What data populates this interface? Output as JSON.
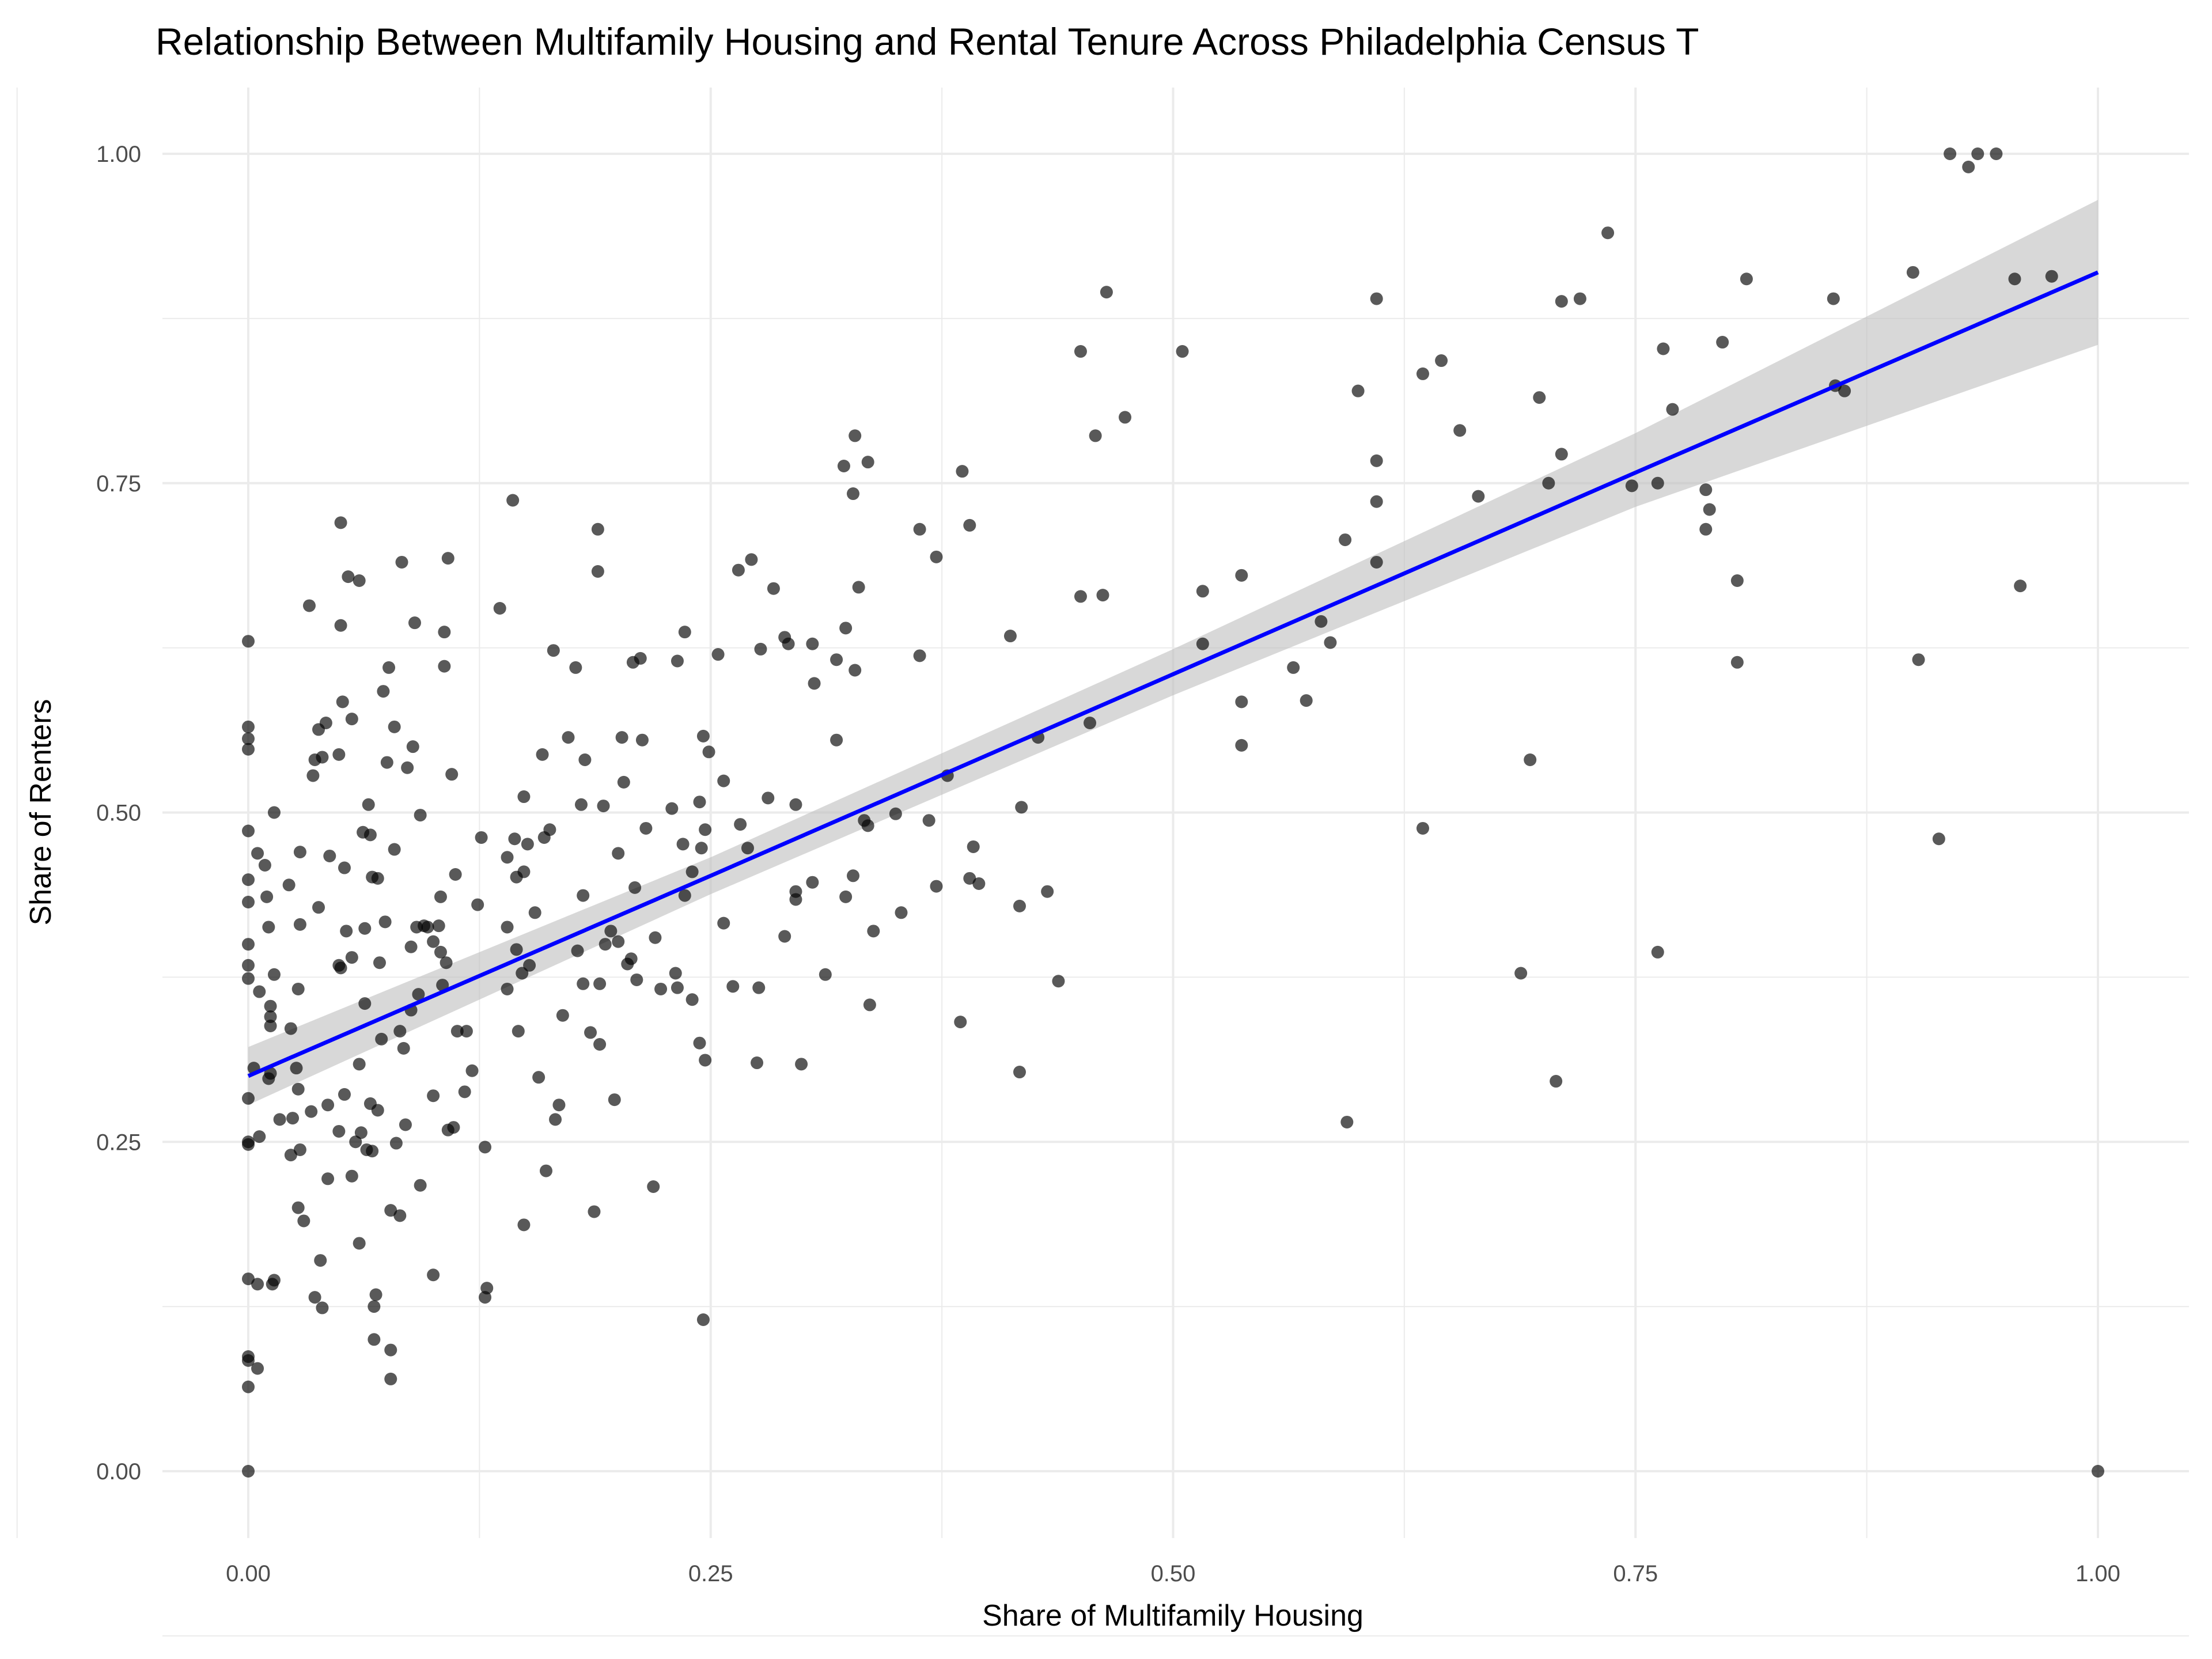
{
  "chart_data": {
    "type": "scatter",
    "title": "Relationship Between Multifamily Housing and Rental Tenure Across Philadelphia Census T",
    "xlabel": "Share of Multifamily Housing",
    "ylabel": "Share of Renters",
    "xlim": [
      -0.09,
      1.05
    ],
    "ylim": [
      -0.05,
      1.05
    ],
    "x_ticks": [
      0,
      0.25,
      0.5,
      0.75,
      1
    ],
    "x_tick_labels": [
      "0.00",
      "0.25",
      "0.50",
      "0.75",
      "1.00"
    ],
    "y_ticks": [
      0,
      0.25,
      0.5,
      0.75,
      1
    ],
    "y_tick_labels": [
      "0.00",
      "0.25",
      "0.50",
      "0.75",
      "1.00"
    ],
    "grid": true,
    "legend": "none",
    "colors": {
      "points": "#000000",
      "fit_line": "#0000FF",
      "ci_band": "#BEBEBE",
      "grid": "#EBEBEB"
    },
    "fit": {
      "method": "linear",
      "x": [
        0,
        0.25,
        0.5,
        0.75,
        1
      ],
      "y": [
        0.3,
        0.452,
        0.605,
        0.758,
        0.91
      ],
      "ci_lower": [
        0.278,
        0.438,
        0.589,
        0.732,
        0.855
      ],
      "ci_upper": [
        0.322,
        0.466,
        0.624,
        0.788,
        0.965
      ]
    },
    "points": [
      [
        0.92,
        1.0
      ],
      [
        0.93,
        0.99
      ],
      [
        0.935,
        1.0
      ],
      [
        0.945,
        1.0
      ],
      [
        0.735,
        0.94
      ],
      [
        0.9,
        0.91
      ],
      [
        0.81,
        0.905
      ],
      [
        0.955,
        0.905
      ],
      [
        0.975,
        0.907
      ],
      [
        0.61,
        0.89
      ],
      [
        0.71,
        0.888
      ],
      [
        0.72,
        0.89
      ],
      [
        0.857,
        0.89
      ],
      [
        0.464,
        0.895
      ],
      [
        0.45,
        0.85
      ],
      [
        0.505,
        0.85
      ],
      [
        0.765,
        0.852
      ],
      [
        0.797,
        0.857
      ],
      [
        0.645,
        0.843
      ],
      [
        0.635,
        0.833
      ],
      [
        0.6,
        0.82
      ],
      [
        0.858,
        0.824
      ],
      [
        0.863,
        0.82
      ],
      [
        0.698,
        0.815
      ],
      [
        0.77,
        0.806
      ],
      [
        0.474,
        0.8
      ],
      [
        0.458,
        0.786
      ],
      [
        0.655,
        0.79
      ],
      [
        0.71,
        0.772
      ],
      [
        0.61,
        0.767
      ],
      [
        0.665,
        0.74
      ],
      [
        0.703,
        0.75
      ],
      [
        0.748,
        0.748
      ],
      [
        0.762,
        0.75
      ],
      [
        0.788,
        0.745
      ],
      [
        0.61,
        0.736
      ],
      [
        0.79,
        0.73
      ],
      [
        0.788,
        0.715
      ],
      [
        0.593,
        0.707
      ],
      [
        0.61,
        0.69
      ],
      [
        0.537,
        0.68
      ],
      [
        0.805,
        0.676
      ],
      [
        0.958,
        0.672
      ],
      [
        0.516,
        0.668
      ],
      [
        0.45,
        0.664
      ],
      [
        0.462,
        0.665
      ],
      [
        0.58,
        0.645
      ],
      [
        0.412,
        0.634
      ],
      [
        0.585,
        0.629
      ],
      [
        0.516,
        0.628
      ],
      [
        0.565,
        0.61
      ],
      [
        0.805,
        0.614
      ],
      [
        0.903,
        0.616
      ],
      [
        0.537,
        0.584
      ],
      [
        0.572,
        0.585
      ],
      [
        0.537,
        0.551
      ],
      [
        0.455,
        0.568
      ],
      [
        0.693,
        0.54
      ],
      [
        0.427,
        0.557
      ],
      [
        0.418,
        0.504
      ],
      [
        0.635,
        0.488
      ],
      [
        0.914,
        0.48
      ],
      [
        0.432,
        0.44
      ],
      [
        0.417,
        0.429
      ],
      [
        0.762,
        0.394
      ],
      [
        0.688,
        0.378
      ],
      [
        0.438,
        0.372
      ],
      [
        0.417,
        0.303
      ],
      [
        0.707,
        0.296
      ],
      [
        0.594,
        0.265
      ],
      [
        1.0,
        0.0
      ],
      [
        0.328,
        0.786
      ],
      [
        0.322,
        0.763
      ],
      [
        0.335,
        0.766
      ],
      [
        0.327,
        0.742
      ],
      [
        0.386,
        0.759
      ],
      [
        0.363,
        0.715
      ],
      [
        0.39,
        0.718
      ],
      [
        0.372,
        0.694
      ],
      [
        0.265,
        0.684
      ],
      [
        0.272,
        0.692
      ],
      [
        0.284,
        0.67
      ],
      [
        0.33,
        0.671
      ],
      [
        0.236,
        0.637
      ],
      [
        0.29,
        0.633
      ],
      [
        0.292,
        0.628
      ],
      [
        0.277,
        0.624
      ],
      [
        0.305,
        0.628
      ],
      [
        0.323,
        0.64
      ],
      [
        0.363,
        0.619
      ],
      [
        0.254,
        0.62
      ],
      [
        0.318,
        0.616
      ],
      [
        0.232,
        0.615
      ],
      [
        0.328,
        0.608
      ],
      [
        0.306,
        0.598
      ],
      [
        0.318,
        0.555
      ],
      [
        0.246,
        0.558
      ],
      [
        0.249,
        0.546
      ],
      [
        0.257,
        0.524
      ],
      [
        0.281,
        0.511
      ],
      [
        0.296,
        0.506
      ],
      [
        0.229,
        0.503
      ],
      [
        0.244,
        0.508
      ],
      [
        0.215,
        0.488
      ],
      [
        0.247,
        0.487
      ],
      [
        0.266,
        0.491
      ],
      [
        0.235,
        0.476
      ],
      [
        0.245,
        0.473
      ],
      [
        0.27,
        0.473
      ],
      [
        0.333,
        0.494
      ],
      [
        0.335,
        0.49
      ],
      [
        0.35,
        0.499
      ],
      [
        0.368,
        0.494
      ],
      [
        0.392,
        0.474
      ],
      [
        0.378,
        0.528
      ],
      [
        0.305,
        0.447
      ],
      [
        0.327,
        0.452
      ],
      [
        0.296,
        0.44
      ],
      [
        0.296,
        0.434
      ],
      [
        0.323,
        0.436
      ],
      [
        0.372,
        0.444
      ],
      [
        0.39,
        0.45
      ],
      [
        0.395,
        0.446
      ],
      [
        0.236,
        0.437
      ],
      [
        0.24,
        0.455
      ],
      [
        0.257,
        0.416
      ],
      [
        0.338,
        0.41
      ],
      [
        0.353,
        0.424
      ],
      [
        0.22,
        0.405
      ],
      [
        0.231,
        0.378
      ],
      [
        0.232,
        0.367
      ],
      [
        0.223,
        0.366
      ],
      [
        0.262,
        0.368
      ],
      [
        0.276,
        0.367
      ],
      [
        0.312,
        0.377
      ],
      [
        0.29,
        0.406
      ],
      [
        0.24,
        0.358
      ],
      [
        0.336,
        0.354
      ],
      [
        0.385,
        0.341
      ],
      [
        0.244,
        0.325
      ],
      [
        0.247,
        0.312
      ],
      [
        0.275,
        0.31
      ],
      [
        0.299,
        0.309
      ],
      [
        0.219,
        0.216
      ],
      [
        0.246,
        0.115
      ],
      [
        0,
        0.63
      ],
      [
        0,
        0.565
      ],
      [
        0,
        0.556
      ],
      [
        0,
        0.548
      ],
      [
        0,
        0.486
      ],
      [
        0,
        0.449
      ],
      [
        0,
        0.432
      ],
      [
        0,
        0.4
      ],
      [
        0,
        0.384
      ],
      [
        0,
        0.374
      ],
      [
        0,
        0.283
      ],
      [
        0,
        0.25
      ],
      [
        0,
        0.248
      ],
      [
        0,
        0.146
      ],
      [
        0,
        0.087
      ],
      [
        0,
        0.084
      ],
      [
        0,
        0.064
      ],
      [
        0,
        0.0
      ],
      [
        0.003,
        0.306
      ],
      [
        0.005,
        0.469
      ],
      [
        0.006,
        0.254
      ],
      [
        0.006,
        0.364
      ],
      [
        0.005,
        0.142
      ],
      [
        0.005,
        0.078
      ],
      [
        0.009,
        0.46
      ],
      [
        0.01,
        0.436
      ],
      [
        0.011,
        0.413
      ],
      [
        0.012,
        0.353
      ],
      [
        0.012,
        0.345
      ],
      [
        0.012,
        0.338
      ],
      [
        0.012,
        0.302
      ],
      [
        0.011,
        0.298
      ],
      [
        0.013,
        0.142
      ],
      [
        0.014,
        0.145
      ],
      [
        0.014,
        0.377
      ],
      [
        0.014,
        0.5
      ],
      [
        0.017,
        0.267
      ],
      [
        0.022,
        0.445
      ],
      [
        0.023,
        0.336
      ],
      [
        0.023,
        0.24
      ],
      [
        0.024,
        0.268
      ],
      [
        0.027,
        0.366
      ],
      [
        0.026,
        0.306
      ],
      [
        0.027,
        0.2
      ],
      [
        0.027,
        0.29
      ],
      [
        0.028,
        0.47
      ],
      [
        0.028,
        0.244
      ],
      [
        0.028,
        0.415
      ],
      [
        0.03,
        0.19
      ],
      [
        0.033,
        0.657
      ],
      [
        0.034,
        0.273
      ],
      [
        0.035,
        0.528
      ],
      [
        0.036,
        0.54
      ],
      [
        0.036,
        0.132
      ],
      [
        0.038,
        0.563
      ],
      [
        0.038,
        0.428
      ],
      [
        0.039,
        0.16
      ],
      [
        0.04,
        0.124
      ],
      [
        0.04,
        0.542
      ],
      [
        0.042,
        0.568
      ],
      [
        0.043,
        0.222
      ],
      [
        0.043,
        0.278
      ],
      [
        0.044,
        0.467
      ],
      [
        0.049,
        0.544
      ],
      [
        0.049,
        0.258
      ],
      [
        0.049,
        0.384
      ],
      [
        0.05,
        0.72
      ],
      [
        0.05,
        0.382
      ],
      [
        0.05,
        0.642
      ],
      [
        0.051,
        0.584
      ],
      [
        0.052,
        0.458
      ],
      [
        0.052,
        0.286
      ],
      [
        0.053,
        0.41
      ],
      [
        0.054,
        0.679
      ],
      [
        0.056,
        0.571
      ],
      [
        0.056,
        0.224
      ],
      [
        0.056,
        0.39
      ],
      [
        0.058,
        0.25
      ],
      [
        0.06,
        0.676
      ],
      [
        0.06,
        0.309
      ],
      [
        0.06,
        0.173
      ],
      [
        0.061,
        0.257
      ],
      [
        0.062,
        0.485
      ],
      [
        0.063,
        0.412
      ],
      [
        0.064,
        0.244
      ],
      [
        0.065,
        0.506
      ],
      [
        0.066,
        0.483
      ],
      [
        0.063,
        0.355
      ],
      [
        0.067,
        0.451
      ],
      [
        0.066,
        0.279
      ],
      [
        0.067,
        0.243
      ],
      [
        0.068,
        0.125
      ],
      [
        0.068,
        0.1
      ],
      [
        0.069,
        0.134
      ],
      [
        0.07,
        0.45
      ],
      [
        0.07,
        0.274
      ],
      [
        0.071,
        0.386
      ],
      [
        0.072,
        0.328
      ],
      [
        0.073,
        0.592
      ],
      [
        0.074,
        0.417
      ],
      [
        0.076,
        0.61
      ],
      [
        0.075,
        0.538
      ],
      [
        0.077,
        0.198
      ],
      [
        0.077,
        0.092
      ],
      [
        0.077,
        0.07
      ],
      [
        0.079,
        0.472
      ],
      [
        0.079,
        0.565
      ],
      [
        0.08,
        0.249
      ],
      [
        0.082,
        0.194
      ],
      [
        0.082,
        0.334
      ],
      [
        0.083,
        0.69
      ],
      [
        0.084,
        0.321
      ],
      [
        0.085,
        0.263
      ],
      [
        0.086,
        0.534
      ],
      [
        0.088,
        0.398
      ],
      [
        0.088,
        0.35
      ],
      [
        0.089,
        0.55
      ],
      [
        0.09,
        0.644
      ],
      [
        0.091,
        0.413
      ],
      [
        0.092,
        0.362
      ],
      [
        0.093,
        0.498
      ],
      [
        0.093,
        0.217
      ],
      [
        0.095,
        0.414
      ],
      [
        0.097,
        0.413
      ],
      [
        0.1,
        0.285
      ],
      [
        0.1,
        0.149
      ],
      [
        0.1,
        0.402
      ],
      [
        0.103,
        0.414
      ],
      [
        0.104,
        0.436
      ],
      [
        0.104,
        0.394
      ],
      [
        0.105,
        0.369
      ],
      [
        0.106,
        0.611
      ],
      [
        0.106,
        0.637
      ],
      [
        0.107,
        0.386
      ],
      [
        0.108,
        0.693
      ],
      [
        0.108,
        0.259
      ],
      [
        0.11,
        0.529
      ],
      [
        0.111,
        0.261
      ],
      [
        0.112,
        0.453
      ],
      [
        0.113,
        0.334
      ],
      [
        0.117,
        0.288
      ],
      [
        0.118,
        0.334
      ],
      [
        0.121,
        0.304
      ],
      [
        0.124,
        0.43
      ],
      [
        0.126,
        0.481
      ],
      [
        0.128,
        0.246
      ],
      [
        0.128,
        0.132
      ],
      [
        0.129,
        0.139
      ],
      [
        0.136,
        0.655
      ],
      [
        0.14,
        0.466
      ],
      [
        0.14,
        0.366
      ],
      [
        0.14,
        0.413
      ],
      [
        0.143,
        0.737
      ],
      [
        0.144,
        0.48
      ],
      [
        0.145,
        0.451
      ],
      [
        0.145,
        0.396
      ],
      [
        0.146,
        0.334
      ],
      [
        0.148,
        0.378
      ],
      [
        0.149,
        0.455
      ],
      [
        0.149,
        0.512
      ],
      [
        0.149,
        0.187
      ],
      [
        0.151,
        0.476
      ],
      [
        0.152,
        0.384
      ],
      [
        0.155,
        0.424
      ],
      [
        0.157,
        0.299
      ],
      [
        0.159,
        0.544
      ],
      [
        0.16,
        0.481
      ],
      [
        0.161,
        0.228
      ],
      [
        0.163,
        0.487
      ],
      [
        0.165,
        0.623
      ],
      [
        0.166,
        0.267
      ],
      [
        0.168,
        0.278
      ],
      [
        0.17,
        0.346
      ],
      [
        0.173,
        0.557
      ],
      [
        0.177,
        0.61
      ],
      [
        0.178,
        0.395
      ],
      [
        0.18,
        0.506
      ],
      [
        0.181,
        0.37
      ],
      [
        0.181,
        0.437
      ],
      [
        0.182,
        0.54
      ],
      [
        0.185,
        0.333
      ],
      [
        0.187,
        0.197
      ],
      [
        0.189,
        0.715
      ],
      [
        0.189,
        0.683
      ],
      [
        0.19,
        0.37
      ],
      [
        0.19,
        0.324
      ],
      [
        0.192,
        0.505
      ],
      [
        0.193,
        0.4
      ],
      [
        0.196,
        0.41
      ],
      [
        0.198,
        0.282
      ],
      [
        0.2,
        0.469
      ],
      [
        0.2,
        0.402
      ],
      [
        0.202,
        0.557
      ],
      [
        0.203,
        0.523
      ],
      [
        0.205,
        0.385
      ],
      [
        0.207,
        0.389
      ],
      [
        0.208,
        0.614
      ],
      [
        0.209,
        0.443
      ],
      [
        0.21,
        0.373
      ],
      [
        0.212,
        0.617
      ],
      [
        0.213,
        0.555
      ]
    ]
  }
}
